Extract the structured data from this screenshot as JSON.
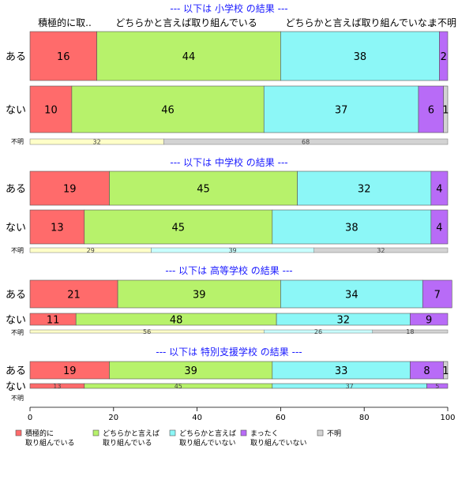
{
  "chart_data": {
    "type": "bar",
    "orientation": "horizontal-stacked",
    "xlim": [
      0,
      100
    ],
    "x_ticks": [
      0,
      20,
      40,
      60,
      80,
      100
    ],
    "column_headers": [
      "積極的に取..",
      "どちらかと言えば取り組んでいる",
      "どちらかと言えば取り組んでいな..",
      "ま",
      "不明"
    ],
    "legend": [
      {
        "label1": "積極的に",
        "label2": "取り組んでいる",
        "color": "#ff6b6b"
      },
      {
        "label1": "どちらかと言えば",
        "label2": "取り組んでいる",
        "color": "#b7f26b"
      },
      {
        "label1": "どちらかと言えば",
        "label2": "取り組んでいない",
        "color": "#8cf7f7"
      },
      {
        "label1": "まったく",
        "label2": "取り組んでいない",
        "color": "#b86bf7"
      },
      {
        "label1": "不明",
        "label2": "",
        "color": "#d3d3d3"
      }
    ],
    "unknown_colors": [
      "#ffffc8",
      "#c8ffff",
      "#d3d3d3"
    ],
    "panels": [
      {
        "title": "--- 以下は 小学校 の結果 ---",
        "rows": [
          {
            "label": "ある",
            "values": [
              16,
              44,
              38,
              2,
              0
            ],
            "labels": [
              "16",
              "44",
              "38",
              "2",
              ""
            ]
          },
          {
            "label": "ない",
            "values": [
              10,
              46,
              37,
              6,
              1
            ],
            "labels": [
              "10",
              "46",
              "37",
              "6",
              "1"
            ]
          }
        ],
        "unknown": {
          "label": "不明",
          "values": [
            32,
            0,
            68
          ],
          "labels": [
            "32",
            "",
            "68"
          ]
        }
      },
      {
        "title": "--- 以下は 中学校 の結果 ---",
        "rows": [
          {
            "label": "ある",
            "values": [
              19,
              45,
              32,
              4,
              0
            ],
            "labels": [
              "19",
              "45",
              "32",
              "4",
              ""
            ]
          },
          {
            "label": "ない",
            "values": [
              13,
              45,
              38,
              4,
              0
            ],
            "labels": [
              "13",
              "45",
              "38",
              "4",
              ""
            ]
          }
        ],
        "unknown": {
          "label": "不明",
          "values": [
            29,
            39,
            32
          ],
          "labels": [
            "29",
            "39",
            "32"
          ]
        }
      },
      {
        "title": "--- 以下は 高等学校 の結果 ---",
        "rows": [
          {
            "label": "ある",
            "values": [
              21,
              39,
              34,
              7,
              0
            ],
            "labels": [
              "21",
              "39",
              "34",
              "7",
              ""
            ]
          },
          {
            "label": "ない",
            "values": [
              11,
              48,
              32,
              9,
              0
            ],
            "labels": [
              "11",
              "48",
              "32",
              "9",
              ""
            ]
          }
        ],
        "unknown": {
          "label": "不明",
          "values": [
            56,
            26,
            18
          ],
          "labels": [
            "56",
            "26",
            "18"
          ]
        }
      },
      {
        "title": "--- 以下は 特別支援学校 の結果 ---",
        "rows": [
          {
            "label": "ある",
            "values": [
              19,
              39,
              33,
              8,
              1
            ],
            "labels": [
              "19",
              "39",
              "33",
              "8",
              "1"
            ]
          },
          {
            "label": "ない",
            "values": [
              13,
              45,
              37,
              5,
              0
            ],
            "labels": [
              "13",
              "45",
              "37",
              "5",
              ""
            ]
          }
        ],
        "unknown": {
          "label": "不明",
          "values": [],
          "labels": []
        }
      }
    ]
  }
}
